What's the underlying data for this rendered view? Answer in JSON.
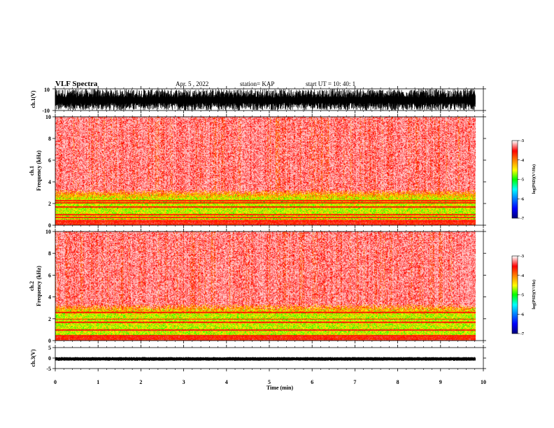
{
  "header": {
    "title": "VLF Spectra",
    "date": "Apr. 5  , 2022",
    "station": "station= KAP",
    "start_ut": "start  UT =   10: 40: 1"
  },
  "colors": {
    "spectra_palette": [
      "#000080",
      "#0000ff",
      "#0080ff",
      "#00ffff",
      "#00ff00",
      "#ffff00",
      "#ff8000",
      "#ff0000",
      "#ffffff"
    ]
  },
  "chart_data": [
    {
      "type": "line",
      "name": "waveform-ch1",
      "ylabel": "ch.1(V)",
      "ylim": [
        -10,
        10
      ],
      "yticks": [
        "10",
        "-10"
      ],
      "xlim": [
        0,
        10
      ],
      "trace_range_min": [
        -10,
        -3
      ],
      "trace_range_max": [
        2,
        10
      ],
      "duration_min": 9.82
    },
    {
      "type": "heatmap",
      "name": "spectrogram-ch1",
      "ylabel": "ch.1\nFrequency (kHz)",
      "ylim": [
        0,
        10
      ],
      "yticks": [
        "0",
        "2",
        "4",
        "6",
        "8",
        "10"
      ],
      "xlim": [
        0,
        10
      ],
      "duration_min": 9.82,
      "band_edge_khz": [
        2.8,
        3.3
      ],
      "line_freqs_khz": [
        0.4,
        0.75,
        1.0,
        1.7,
        2.1,
        2.3
      ],
      "colorbar": {
        "label": "log(PSD)(V²/Hz)",
        "ticks": [
          "-3",
          "-4",
          "-5",
          "-6",
          "-7"
        ],
        "range": [
          -7,
          -3
        ]
      }
    },
    {
      "type": "heatmap",
      "name": "spectrogram-ch2",
      "ylabel": "ch.2\nFrequency (kHz)",
      "ylim": [
        0,
        10
      ],
      "yticks": [
        "0",
        "2",
        "4",
        "6",
        "8",
        "10"
      ],
      "xlim": [
        0,
        10
      ],
      "duration_min": 9.82,
      "band_edge_khz": [
        2.8,
        3.4
      ],
      "line_freqs_khz": [
        0.25,
        0.5,
        1.0,
        1.7,
        2.0,
        2.6
      ],
      "colorbar": {
        "label": "log(PSD)(V²/Hz)",
        "ticks": [
          "-3",
          "-4",
          "-5",
          "-6",
          "-7"
        ],
        "range": [
          -7,
          -3
        ]
      }
    },
    {
      "type": "line",
      "name": "waveform-ch3",
      "ylabel": "ch.3(V)",
      "ylim": [
        -5,
        5
      ],
      "yticks": [
        "5",
        "0",
        "-5"
      ],
      "xlim": [
        0,
        10
      ],
      "xlabel": "Time (min)",
      "xticks": [
        "0",
        "1",
        "2",
        "3",
        "4",
        "5",
        "6",
        "7",
        "8",
        "9",
        "10"
      ],
      "trace_range": [
        -1.0,
        0.2
      ],
      "duration_min": 9.82
    }
  ]
}
